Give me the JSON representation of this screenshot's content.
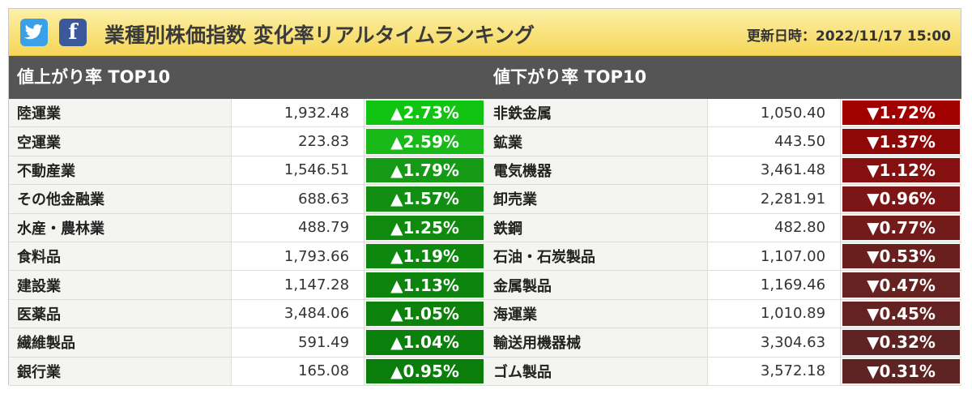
{
  "header": {
    "title": "業種別株価指数 変化率リアルタイムランキング",
    "updated": "更新日時：2022/11/17 15:00",
    "twitter_icon": "twitter-icon",
    "facebook_icon": "facebook-icon"
  },
  "rising": {
    "title": "値上がり率 TOP10",
    "rows": [
      {
        "name": "陸運業",
        "value": "1,932.48",
        "change": "▲2.73%",
        "color": "#12c412"
      },
      {
        "name": "空運業",
        "value": "223.83",
        "change": "▲2.59%",
        "color": "#19b919"
      },
      {
        "name": "不動産業",
        "value": "1,546.51",
        "change": "▲1.79%",
        "color": "#159a15"
      },
      {
        "name": "その他金融業",
        "value": "688.63",
        "change": "▲1.57%",
        "color": "#128f12"
      },
      {
        "name": "水産・農林業",
        "value": "488.79",
        "change": "▲1.25%",
        "color": "#0f8a0f"
      },
      {
        "name": "食料品",
        "value": "1,793.66",
        "change": "▲1.19%",
        "color": "#0e870e"
      },
      {
        "name": "建設業",
        "value": "1,147.28",
        "change": "▲1.13%",
        "color": "#0d840d"
      },
      {
        "name": "医薬品",
        "value": "3,484.06",
        "change": "▲1.05%",
        "color": "#0c810c"
      },
      {
        "name": "繊維製品",
        "value": "591.49",
        "change": "▲1.04%",
        "color": "#0c800c"
      },
      {
        "name": "銀行業",
        "value": "165.08",
        "change": "▲0.95%",
        "color": "#0b7d0b"
      }
    ]
  },
  "falling": {
    "title": "値下がり率 TOP10",
    "rows": [
      {
        "name": "非鉄金属",
        "value": "1,050.40",
        "change": "▼1.72%",
        "color": "#a00000"
      },
      {
        "name": "鉱業",
        "value": "443.50",
        "change": "▼1.37%",
        "color": "#8e0808"
      },
      {
        "name": "電気機器",
        "value": "3,461.48",
        "change": "▼1.12%",
        "color": "#841010"
      },
      {
        "name": "卸売業",
        "value": "2,281.91",
        "change": "▼0.96%",
        "color": "#7c1616"
      },
      {
        "name": "鉄鋼",
        "value": "482.80",
        "change": "▼0.77%",
        "color": "#731b1b"
      },
      {
        "name": "石油・石炭製品",
        "value": "1,107.00",
        "change": "▼0.53%",
        "color": "#6a1f1f"
      },
      {
        "name": "金属製品",
        "value": "1,169.46",
        "change": "▼0.47%",
        "color": "#662121"
      },
      {
        "name": "海運業",
        "value": "1,010.89",
        "change": "▼0.45%",
        "color": "#642222"
      },
      {
        "name": "輸送用機器械",
        "value": "3,304.63",
        "change": "▼0.32%",
        "color": "#602323"
      },
      {
        "name": "ゴム製品",
        "value": "3,572.18",
        "change": "▼0.31%",
        "color": "#5e2424"
      }
    ]
  }
}
